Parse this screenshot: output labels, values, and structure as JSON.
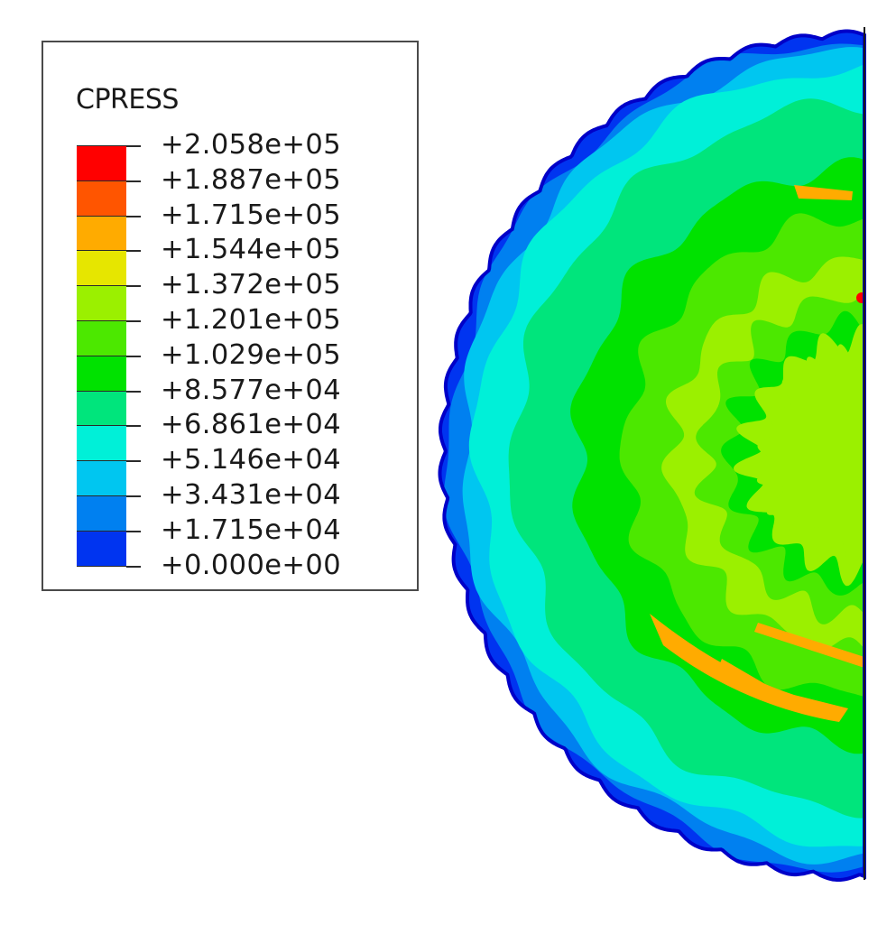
{
  "legend": {
    "title": "CPRESS",
    "labels": [
      "+2.058e+05",
      "+1.887e+05",
      "+1.715e+05",
      "+1.544e+05",
      "+1.372e+05",
      "+1.201e+05",
      "+1.029e+05",
      "+8.577e+04",
      "+6.861e+04",
      "+5.146e+04",
      "+3.431e+04",
      "+1.715e+04",
      "+0.000e+00"
    ],
    "colors": [
      "#ff0000",
      "#ff5500",
      "#ffab00",
      "#e6e600",
      "#9bf000",
      "#4ce800",
      "#00e200",
      "#00e57c",
      "#00f0d8",
      "#00c6f0",
      "#0080f0",
      "#0034f0"
    ]
  },
  "contour": {
    "field": "CPRESS",
    "background": "#ffffff",
    "edge_color": "#1a1a1a"
  }
}
